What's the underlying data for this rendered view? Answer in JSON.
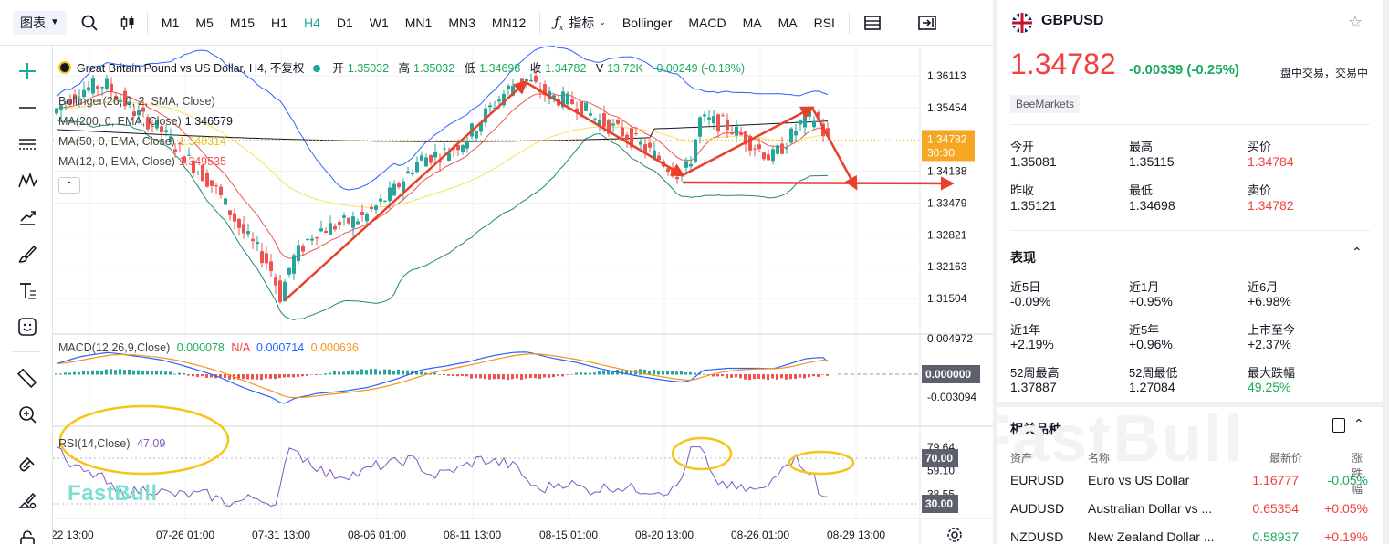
{
  "toolbar": {
    "chart_type": "图表",
    "timeframes": [
      "M1",
      "M5",
      "M15",
      "H1",
      "H4",
      "D1",
      "W1",
      "MN1",
      "MN3",
      "MN12"
    ],
    "active_timeframe": "H4",
    "indicators_label": "指标",
    "indicator_shortcuts": [
      "Bollinger",
      "MACD",
      "MA",
      "MA",
      "RSI"
    ]
  },
  "legend": {
    "symbol_title": "Great Britain Pound vs US Dollar, H4, 不复权",
    "open_label": "开",
    "open": "1.35032",
    "high_label": "高",
    "high": "1.35032",
    "low_label": "低",
    "low": "1.34698",
    "close_label": "收",
    "close": "1.34782",
    "volume_label": "V",
    "volume": "13.72K",
    "change": "-0.00249 (-0.18%)"
  },
  "indicators": {
    "bollinger": "Bollinger(26, 0, 2, SMA, Close)",
    "ma200": "MA(200, 0, EMA, Close)",
    "ma200_value": "1.346579",
    "ma50": "MA(50, 0, EMA, Close)",
    "ma50_value": "1.348314",
    "ma12": "MA(12, 0, EMA, Close)",
    "ma12_value": "1.349535",
    "macd": "MACD(12,26,9,Close)",
    "macd_values": [
      "0.000078",
      "N/A",
      "0.000714",
      "0.000636"
    ],
    "rsi": "RSI(14,Close)",
    "rsi_value": "47.09"
  },
  "price_axis": {
    "ticks": [
      "1.36113",
      "1.35454",
      "1.34138",
      "1.33479",
      "1.32821",
      "1.32163",
      "1.31504"
    ],
    "last_price": "1.34782",
    "countdown": "30:30"
  },
  "macd_axis": {
    "ticks": [
      "0.004972",
      "-0.003094"
    ],
    "current": "0.000000"
  },
  "rsi_axis": {
    "ticks": [
      "79.64",
      "59.10",
      "38.55"
    ],
    "upper": "70.00",
    "lower": "30.00"
  },
  "time_axis": [
    "22 13:00",
    "07-26 01:00",
    "07-31 13:00",
    "08-06 01:00",
    "08-11 13:00",
    "08-15 01:00",
    "08-20 13:00",
    "08-26 01:00",
    "08-29 13:00"
  ],
  "watermark": "FastBull",
  "colors": {
    "up": "#26a69a",
    "down": "#ef5350",
    "accent": "#1aa89a",
    "annotation_red": "#e8402a",
    "annotation_yellow": "#f5c518",
    "last_price_bg": "#f5a623"
  },
  "quote": {
    "symbol": "GBPUSD",
    "price": "1.34782",
    "change": "-0.00339",
    "change_pct": "(-0.25%)",
    "status": "盘中交易，交易中",
    "broker": "BeeMarkets",
    "stats": [
      {
        "label": "今开",
        "value": "1.35081"
      },
      {
        "label": "最高",
        "value": "1.35115"
      },
      {
        "label": "买价",
        "value": "1.34784"
      },
      {
        "label": "昨收",
        "value": "1.35121"
      },
      {
        "label": "最低",
        "value": "1.34698"
      },
      {
        "label": "卖价",
        "value": "1.34782"
      }
    ]
  },
  "performance": {
    "title": "表现",
    "items": [
      {
        "label": "近5日",
        "value": "-0.09%"
      },
      {
        "label": "近1月",
        "value": "+0.95%"
      },
      {
        "label": "近6月",
        "value": "+6.98%"
      },
      {
        "label": "近1年",
        "value": "+2.19%"
      },
      {
        "label": "近5年",
        "value": "+0.96%"
      },
      {
        "label": "上市至今",
        "value": "+2.37%"
      },
      {
        "label": "52周最高",
        "value": "1.37887"
      },
      {
        "label": "52周最低",
        "value": "1.27084"
      },
      {
        "label": "最大跌幅",
        "value": "49.25%"
      }
    ]
  },
  "related": {
    "title": "相关品种",
    "headers": [
      "资产",
      "名称",
      "最新价",
      "涨跌幅"
    ],
    "rows": [
      {
        "symbol": "EURUSD",
        "name": "Euro vs US Dollar",
        "price": "1.16777",
        "change": "-0.05%"
      },
      {
        "symbol": "AUDUSD",
        "name": "Australian Dollar vs ...",
        "price": "0.65354",
        "change": "+0.05%"
      },
      {
        "symbol": "NZDUSD",
        "name": "New Zealand Dollar ...",
        "price": "0.58937",
        "change": "+0.19%"
      }
    ]
  }
}
